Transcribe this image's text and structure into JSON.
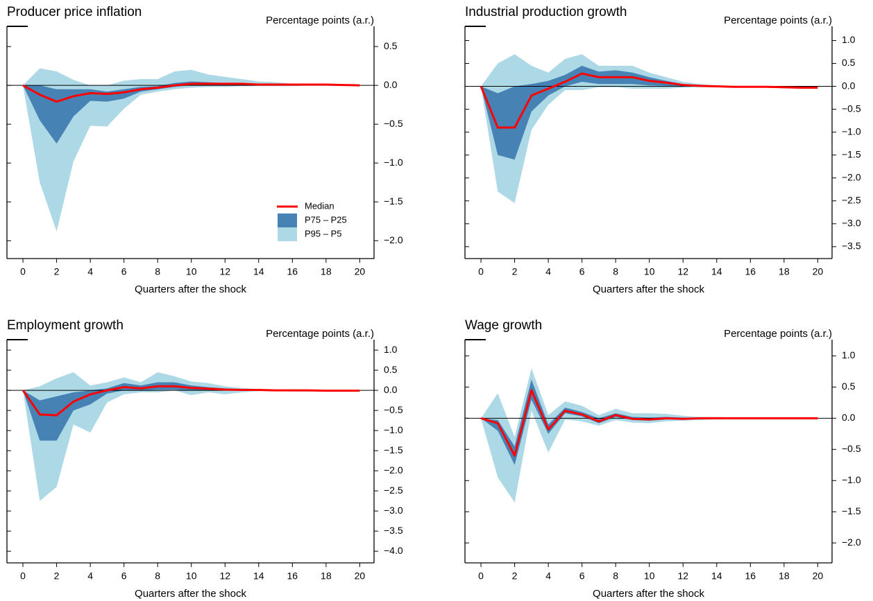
{
  "chart_data": [
    {
      "type": "line",
      "title": "Producer price inflation",
      "y_label": "Percentage points (a.r.)",
      "x_label": "Quarters after the shock",
      "x": [
        0,
        1,
        2,
        3,
        4,
        5,
        6,
        7,
        8,
        9,
        10,
        11,
        12,
        13,
        14,
        15,
        16,
        17,
        18,
        19,
        20
      ],
      "xlim": [
        -0.95,
        20.85
      ],
      "xticks": [
        0,
        2,
        4,
        6,
        8,
        10,
        12,
        14,
        16,
        18,
        20
      ],
      "ylim": [
        -2.23,
        0.76
      ],
      "yticks": [
        0.5,
        {
          "value": 0,
          "label": "0.0"
        },
        {
          "value": -0.5,
          "label": "−0.5"
        },
        {
          "value": -1,
          "label": "−1.0"
        },
        {
          "value": -1.5,
          "label": "−1.5"
        },
        {
          "value": -2,
          "label": "−2.0"
        }
      ],
      "legend": "lower right",
      "series": [
        {
          "name": "Median",
          "color": "#ff0000",
          "values": [
            0,
            -0.12,
            -0.21,
            -0.14,
            -0.1,
            -0.11,
            -0.09,
            -0.05,
            -0.03,
            0,
            0.02,
            0.02,
            0.02,
            0.02,
            0.01,
            0.01,
            0.01,
            0.01,
            0.01,
            0.005,
            0
          ]
        },
        {
          "name": "P75 – P25",
          "color": "#4682b4",
          "upper": [
            0,
            0,
            -0.05,
            -0.05,
            -0.05,
            -0.08,
            -0.05,
            -0.02,
            -0.01,
            0.03,
            0.05,
            0.04,
            0.03,
            0.03,
            0.02,
            0.01,
            0.01,
            0.01,
            0.01,
            0.01,
            0
          ],
          "lower": [
            0,
            -0.45,
            -0.75,
            -0.4,
            -0.2,
            -0.21,
            -0.17,
            -0.08,
            -0.05,
            -0.02,
            0,
            0,
            0,
            0,
            0,
            0,
            0,
            0,
            0,
            0,
            0
          ]
        },
        {
          "name": "P95 – P5",
          "color": "#add8e6",
          "upper": [
            0,
            0.22,
            0.18,
            0.07,
            0,
            0,
            0.06,
            0.08,
            0.08,
            0.18,
            0.2,
            0.14,
            0.11,
            0.08,
            0.05,
            0.04,
            0.02,
            0.02,
            0.02,
            0.01,
            0.01
          ],
          "lower": [
            0,
            -1.25,
            -1.88,
            -0.98,
            -0.52,
            -0.53,
            -0.3,
            -0.12,
            -0.08,
            -0.05,
            -0.03,
            -0.02,
            -0.02,
            -0.01,
            -0.01,
            -0.01,
            -0.01,
            0,
            0,
            0,
            0
          ]
        }
      ]
    },
    {
      "type": "line",
      "title": "Industrial production growth",
      "y_label": "Percentage points (a.r.)",
      "x_label": "Quarters after the shock",
      "x": [
        0,
        1,
        2,
        3,
        4,
        5,
        6,
        7,
        8,
        9,
        10,
        11,
        12,
        13,
        14,
        15,
        16,
        17,
        18,
        19,
        20
      ],
      "xlim": [
        -0.95,
        20.85
      ],
      "xticks": [
        0,
        2,
        4,
        6,
        8,
        10,
        12,
        14,
        16,
        18,
        20
      ],
      "ylim": [
        -3.76,
        1.31
      ],
      "yticks": [
        {
          "value": 1,
          "label": "1.0"
        },
        0.5,
        {
          "value": 0,
          "label": "0.0"
        },
        {
          "value": -0.5,
          "label": "−0.5"
        },
        {
          "value": -1,
          "label": "−1.0"
        },
        {
          "value": -1.5,
          "label": "−1.5"
        },
        {
          "value": -2,
          "label": "−2.0"
        },
        {
          "value": -2.5,
          "label": "−2.5"
        },
        {
          "value": -3,
          "label": "−3.0"
        },
        {
          "value": -3.5,
          "label": "−3.5"
        }
      ],
      "series": [
        {
          "color": "#ff0000",
          "values": [
            0,
            -0.9,
            -0.9,
            -0.2,
            -0.05,
            0.1,
            0.28,
            0.2,
            0.2,
            0.2,
            0.12,
            0.08,
            0.03,
            0.01,
            0,
            -0.01,
            -0.01,
            -0.01,
            -0.02,
            -0.03,
            -0.03
          ]
        },
        {
          "color": "#4682b4",
          "upper": [
            0,
            -0.15,
            0,
            0.05,
            0.12,
            0.25,
            0.45,
            0.32,
            0.35,
            0.3,
            0.2,
            0.12,
            0.05,
            0.02,
            0.01,
            0,
            0,
            0,
            -0.01,
            -0.02,
            -0.02
          ],
          "lower": [
            0,
            -1.5,
            -1.6,
            -0.55,
            -0.2,
            0,
            0.1,
            0.05,
            0.05,
            0.05,
            0.02,
            0.01,
            0,
            -0.01,
            -0.01,
            -0.02,
            -0.02,
            -0.02,
            -0.03,
            -0.04,
            -0.04
          ]
        },
        {
          "color": "#add8e6",
          "upper": [
            0,
            0.5,
            0.7,
            0.45,
            0.3,
            0.6,
            0.7,
            0.45,
            0.45,
            0.45,
            0.3,
            0.2,
            0.1,
            0.05,
            0.02,
            0.01,
            0.01,
            0.01,
            0,
            -0.01,
            -0.01
          ],
          "lower": [
            0,
            -2.3,
            -2.55,
            -0.95,
            -0.4,
            -0.08,
            -0.08,
            -0.02,
            -0.02,
            -0.05,
            -0.05,
            -0.05,
            -0.03,
            -0.02,
            -0.02,
            -0.03,
            -0.03,
            -0.03,
            -0.04,
            -0.05,
            -0.05
          ]
        }
      ]
    },
    {
      "type": "line",
      "title": "Employment growth",
      "y_label": "Percentage points (a.r.)",
      "x_label": "Quarters after the shock",
      "x": [
        0,
        1,
        2,
        3,
        4,
        5,
        6,
        7,
        8,
        9,
        10,
        11,
        12,
        13,
        14,
        15,
        16,
        17,
        18,
        19,
        20
      ],
      "xlim": [
        -0.95,
        20.85
      ],
      "xticks": [
        0,
        2,
        4,
        6,
        8,
        10,
        12,
        14,
        16,
        18,
        20
      ],
      "ylim": [
        -4.29,
        1.26
      ],
      "yticks": [
        {
          "value": 1,
          "label": "1.0"
        },
        0.5,
        {
          "value": 0,
          "label": "0.0"
        },
        {
          "value": -0.5,
          "label": "−0.5"
        },
        {
          "value": -1,
          "label": "−1.0"
        },
        {
          "value": -1.5,
          "label": "−1.5"
        },
        {
          "value": -2,
          "label": "−2.0"
        },
        {
          "value": -2.5,
          "label": "−2.5"
        },
        {
          "value": -3,
          "label": "−3.0"
        },
        {
          "value": -3.5,
          "label": "−3.5"
        },
        {
          "value": -4,
          "label": "−4.0"
        }
      ],
      "series": [
        {
          "color": "#ff0000",
          "values": [
            0,
            -0.6,
            -0.62,
            -0.28,
            -0.1,
            0,
            0.08,
            0.05,
            0.1,
            0.1,
            0.06,
            0.04,
            0.02,
            0.01,
            0.01,
            0,
            0,
            0,
            -0.01,
            -0.01,
            -0.01
          ]
        },
        {
          "color": "#4682b4",
          "upper": [
            0,
            -0.25,
            -0.15,
            -0.05,
            0,
            0.05,
            0.18,
            0.12,
            0.2,
            0.2,
            0.12,
            0.08,
            0.05,
            0.03,
            0.02,
            0.01,
            0.01,
            0,
            0,
            0,
            0
          ],
          "lower": [
            0,
            -1.25,
            -1.25,
            -0.5,
            -0.35,
            -0.08,
            0,
            0,
            0.02,
            0.02,
            0,
            0,
            0,
            0,
            0,
            -0.01,
            -0.01,
            -0.01,
            -0.02,
            -0.02,
            -0.02
          ]
        },
        {
          "color": "#add8e6",
          "upper": [
            0,
            0.1,
            0.3,
            0.45,
            0.12,
            0.2,
            0.32,
            0.2,
            0.45,
            0.35,
            0.22,
            0.18,
            0.1,
            0.06,
            0.03,
            0.02,
            0.02,
            0.01,
            0.01,
            0.01,
            0.01
          ],
          "lower": [
            0,
            -2.75,
            -2.4,
            -0.85,
            -1.05,
            -0.3,
            -0.1,
            -0.05,
            -0.05,
            0,
            -0.12,
            -0.05,
            -0.1,
            -0.05,
            -0.02,
            -0.02,
            -0.03,
            -0.03,
            -0.03,
            -0.03,
            -0.03
          ]
        }
      ]
    },
    {
      "type": "line",
      "title": "Wage growth",
      "y_label": "Percentage points (a.r.)",
      "x_label": "Quarters after the shock",
      "x": [
        0,
        1,
        2,
        3,
        4,
        5,
        6,
        7,
        8,
        9,
        10,
        11,
        12,
        13,
        14,
        15,
        16,
        17,
        18,
        19,
        20
      ],
      "xlim": [
        -0.95,
        20.85
      ],
      "xticks": [
        0,
        2,
        4,
        6,
        8,
        10,
        12,
        14,
        16,
        18,
        20
      ],
      "ylim": [
        -2.32,
        1.26
      ],
      "yticks": [
        {
          "value": 1,
          "label": "1.0"
        },
        0.5,
        {
          "value": 0,
          "label": "0.0"
        },
        {
          "value": -0.5,
          "label": "−0.5"
        },
        {
          "value": -1,
          "label": "−1.0"
        },
        {
          "value": -1.5,
          "label": "−1.5"
        },
        {
          "value": -2,
          "label": "−2.0"
        }
      ],
      "series": [
        {
          "color": "#ff0000",
          "values": [
            0,
            -0.08,
            -0.6,
            0.45,
            -0.18,
            0.12,
            0.06,
            -0.05,
            0.05,
            -0.01,
            -0.02,
            0,
            -0.01,
            0,
            0,
            0,
            0,
            0,
            0,
            0,
            0
          ]
        },
        {
          "color": "#4682b4",
          "upper": [
            0,
            -0.03,
            -0.45,
            0.62,
            -0.1,
            0.17,
            0.1,
            0,
            0.08,
            0.02,
            0.01,
            0.02,
            0.01,
            0.01,
            0.01,
            0.01,
            0.01,
            0.01,
            0.01,
            0.01,
            0.01
          ],
          "lower": [
            0,
            -0.2,
            -0.75,
            0.3,
            -0.25,
            0.08,
            0.03,
            -0.08,
            0.02,
            -0.03,
            -0.04,
            -0.02,
            -0.02,
            -0.01,
            -0.01,
            -0.01,
            -0.01,
            -0.01,
            -0.01,
            -0.01,
            -0.01
          ]
        },
        {
          "color": "#add8e6",
          "upper": [
            0,
            0.4,
            -0.3,
            0.8,
            0.05,
            0.27,
            0.2,
            0.05,
            0.15,
            0.08,
            0.08,
            0.07,
            0.04,
            0.02,
            0.02,
            0.01,
            0.01,
            0.01,
            0.01,
            0.01,
            0.01
          ],
          "lower": [
            0,
            -0.95,
            -1.35,
            0.12,
            -0.55,
            -0.02,
            -0.05,
            -0.12,
            -0.03,
            -0.07,
            -0.08,
            -0.05,
            -0.04,
            -0.03,
            -0.02,
            -0.02,
            -0.02,
            -0.02,
            -0.02,
            -0.02,
            -0.02
          ]
        }
      ]
    }
  ]
}
